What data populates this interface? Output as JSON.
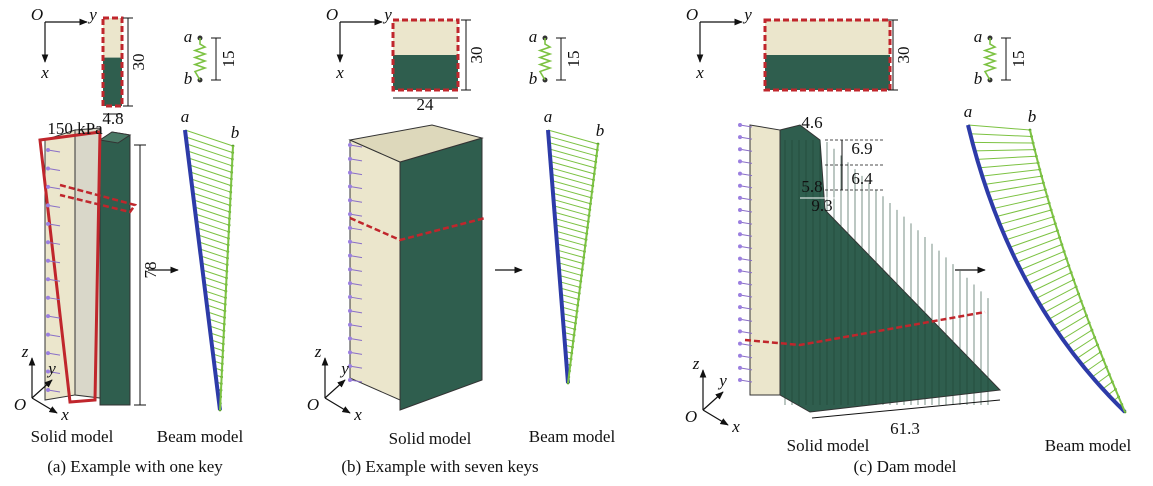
{
  "panels": [
    {
      "caption": "(a) Example with one key",
      "section": {
        "origin": "O",
        "y_axis": "y",
        "x_axis": "x",
        "height": "30",
        "width": "4.8"
      },
      "spring": {
        "a": "a",
        "b": "b",
        "length": "15"
      },
      "load": "150 kPa",
      "height": "78",
      "beam": {
        "a": "a",
        "b": "b"
      },
      "triad": {
        "z": "z",
        "y": "y",
        "origin": "O",
        "x": "x"
      },
      "solid_label": "Solid model",
      "beam_label": "Beam model"
    },
    {
      "caption": "(b) Example with seven keys",
      "section": {
        "origin": "O",
        "y_axis": "y",
        "x_axis": "x",
        "height": "30",
        "width": "24"
      },
      "spring": {
        "a": "a",
        "b": "b",
        "length": "15"
      },
      "beam": {
        "a": "a",
        "b": "b"
      },
      "triad": {
        "z": "z",
        "y": "y",
        "origin": "O",
        "x": "x"
      },
      "solid_label": "Solid model",
      "beam_label": "Beam model"
    },
    {
      "caption": "(c) Dam model",
      "section": {
        "origin": "O",
        "y_axis": "y",
        "x_axis": "x",
        "height": "30"
      },
      "spring": {
        "a": "a",
        "b": "b",
        "length": "15"
      },
      "dims": [
        "4.6",
        "6.9",
        "6.4",
        "5.8",
        "9.3",
        "61.3"
      ],
      "beam": {
        "a": "a",
        "b": "b"
      },
      "triad": {
        "z": "z",
        "y": "y",
        "origin": "O",
        "x": "x"
      },
      "solid_label": "Solid model",
      "beam_label": "Beam model"
    }
  ]
}
